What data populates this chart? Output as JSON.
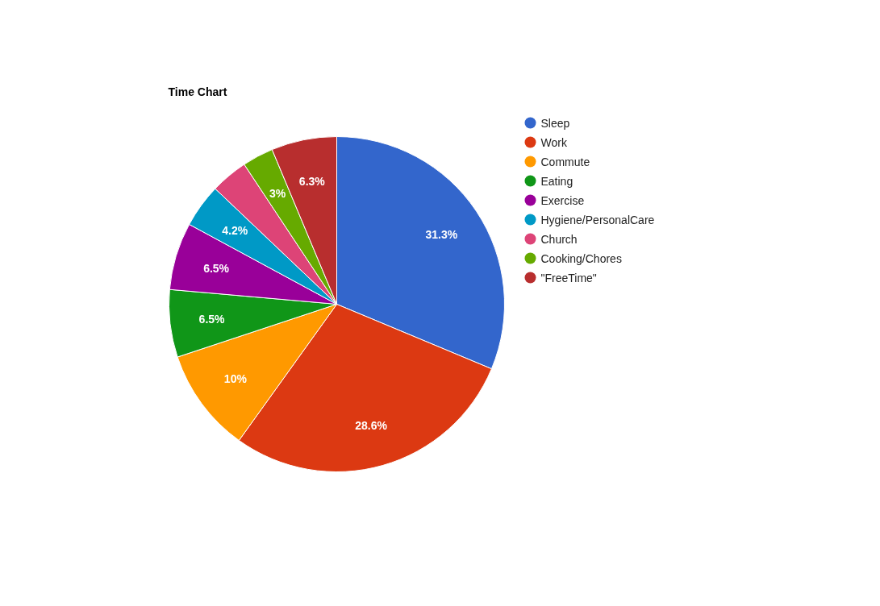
{
  "chart_data": {
    "type": "pie",
    "title": "Time Chart",
    "categories": [
      "Sleep",
      "Work",
      "Commute",
      "Eating",
      "Exercise",
      "Hygiene/PersonalCare",
      "Church",
      "Cooking/Chores",
      "\"FreeTime\""
    ],
    "values": [
      31.3,
      28.6,
      10,
      6.5,
      6.5,
      4.2,
      3.6,
      3,
      6.3
    ],
    "colors": [
      "#3366cc",
      "#dc3912",
      "#ff9900",
      "#109618",
      "#990099",
      "#0099c6",
      "#dd4477",
      "#66aa00",
      "#b82e2e"
    ],
    "value_labels": [
      "31.3%",
      "28.6%",
      "10%",
      "6.5%",
      "6.5%",
      "4.2%",
      null,
      "3%",
      "6.3%"
    ],
    "legend": "right"
  }
}
